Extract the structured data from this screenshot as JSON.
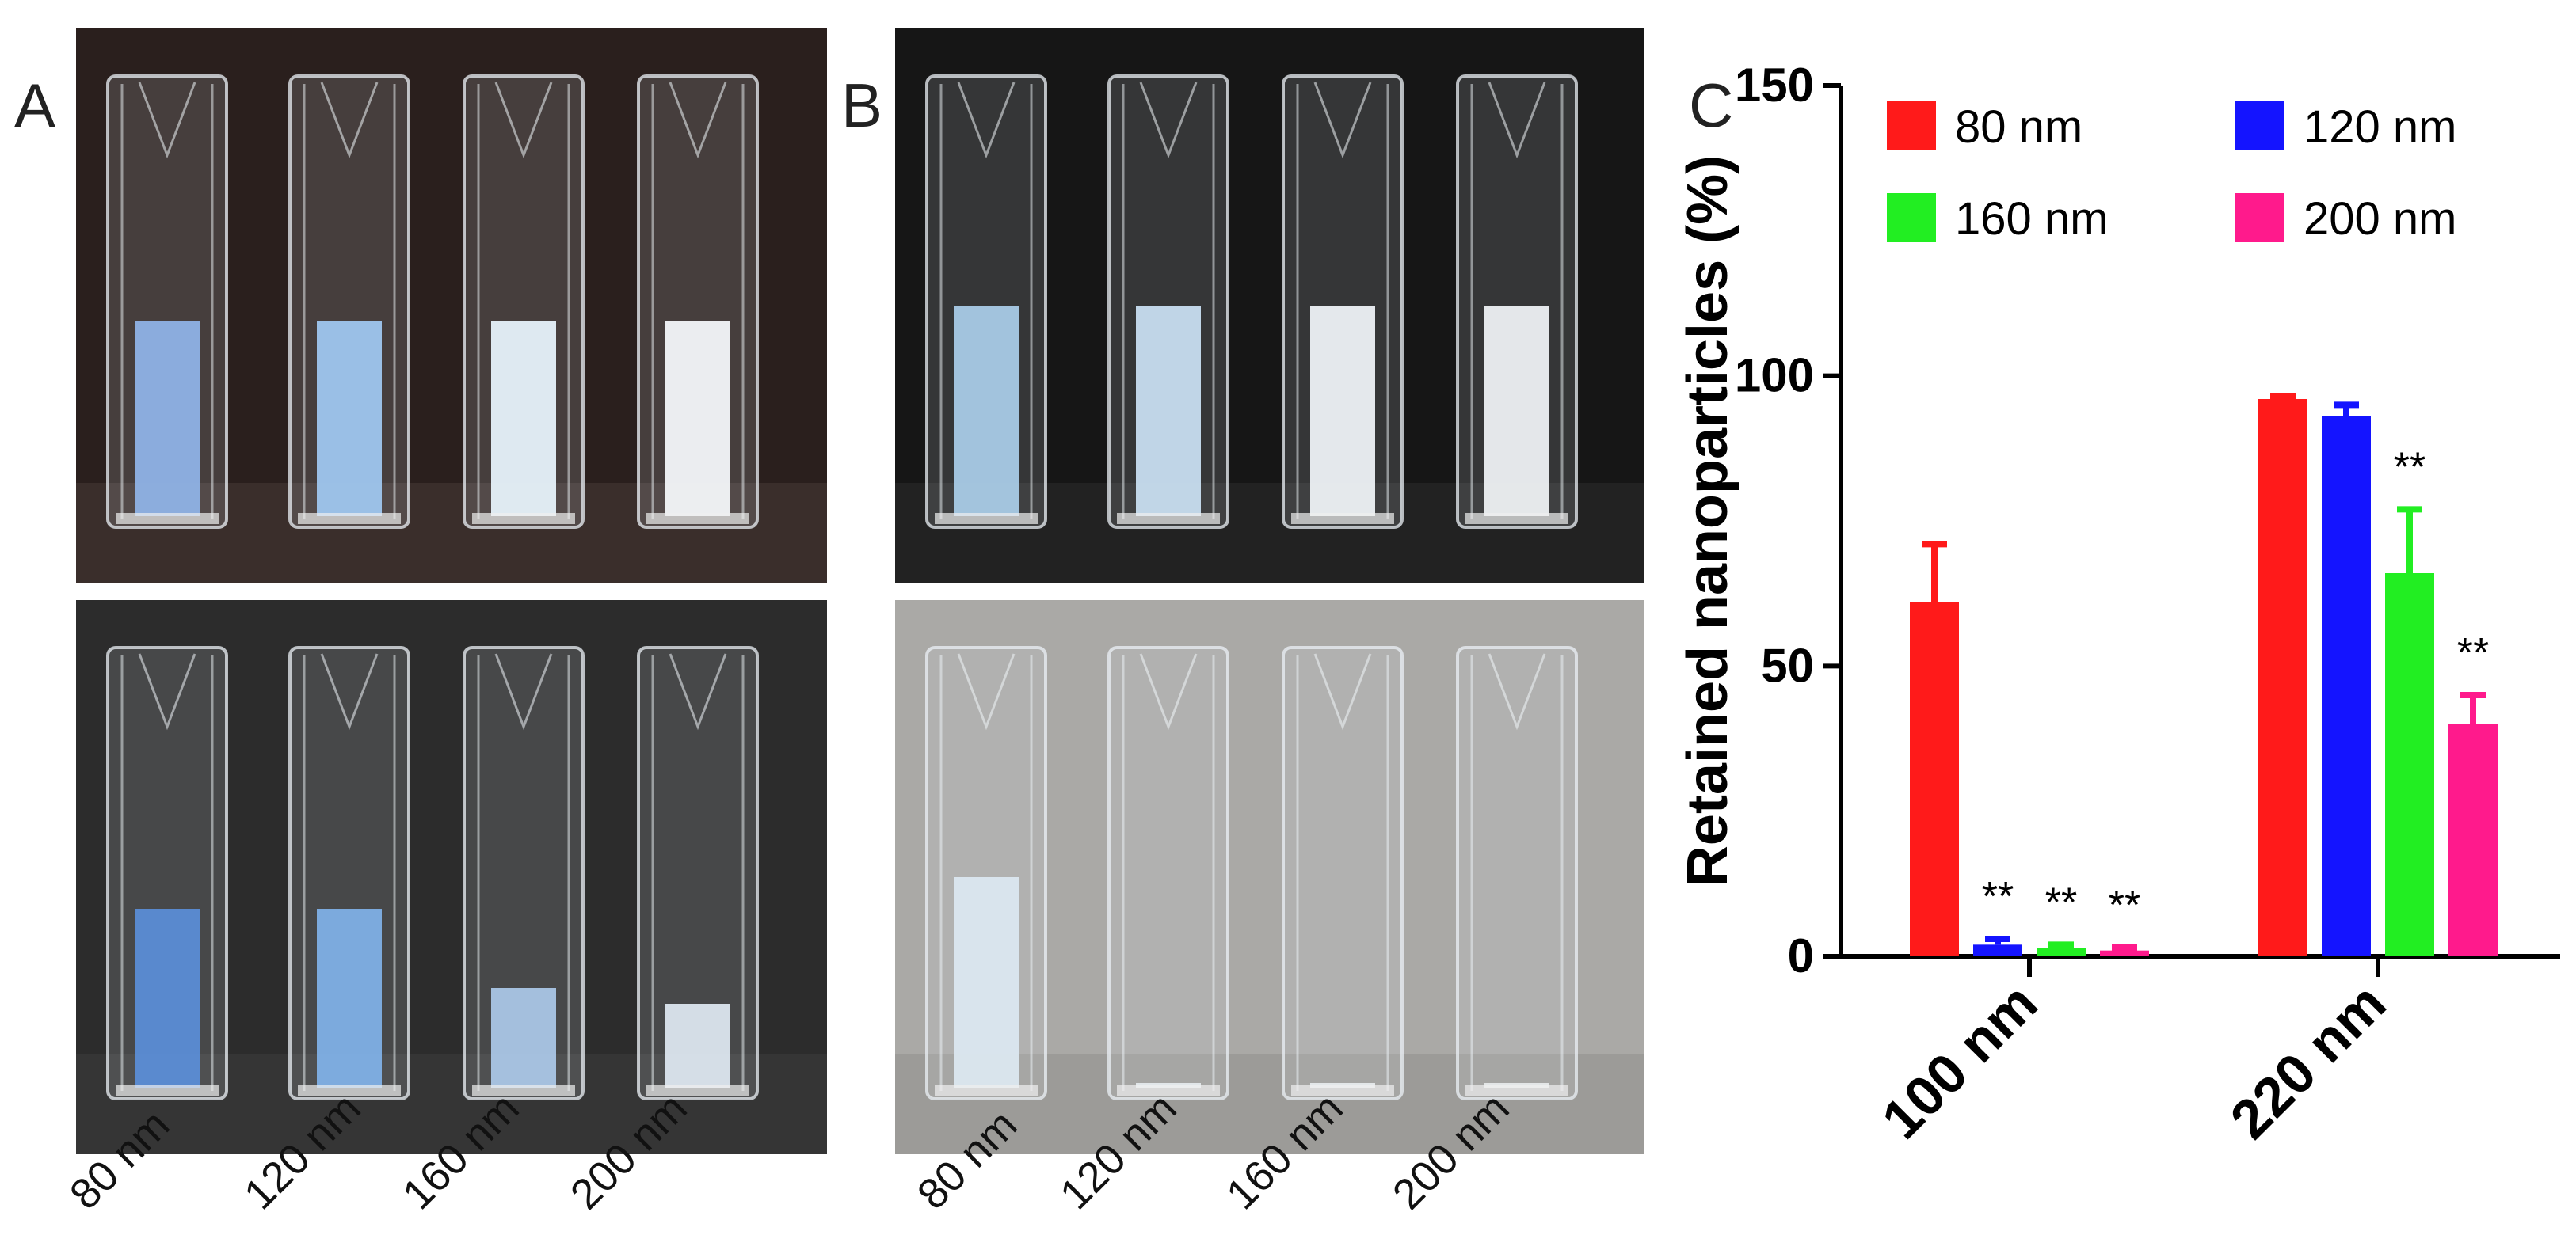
{
  "panels": {
    "a_letter": "A",
    "b_letter": "B",
    "c_letter": "C"
  },
  "photo_a": {
    "tube_labels": [
      "80 nm",
      "120 nm",
      "160 nm",
      "200 nm"
    ],
    "top_fill_colors": [
      "#8fb2e6",
      "#9fc6ef",
      "#e7f2fb",
      "#f4f7fa"
    ],
    "bottom_fill_colors": [
      "#5b8dd6",
      "#7fb0e6",
      "#aac6e6",
      "#dce6ef"
    ],
    "top_background": "#2a1f1d",
    "bottom_background": "#2c2c2c"
  },
  "photo_b": {
    "tube_labels": [
      "80 nm",
      "120 nm",
      "160 nm",
      "200 nm"
    ],
    "top_fill_colors": [
      "#a9cbe6",
      "#c8def0",
      "#eef2f5",
      "#eef1f3"
    ],
    "bottom_fill_colors": [
      "#dbe7f0",
      "#e4e9ed",
      "#e6eaed",
      "#e6e9eb"
    ],
    "top_background": "#161616",
    "bottom_background": "#aaa9a6"
  },
  "chart_data": {
    "type": "bar",
    "categories": [
      "100 nm",
      "220 nm"
    ],
    "series": [
      {
        "name": "80 nm",
        "color": "#ff1a1a",
        "values": [
          61,
          96
        ],
        "errors": [
          10,
          0.5
        ],
        "stars": [
          "",
          ""
        ]
      },
      {
        "name": "120 nm",
        "color": "#1414ff",
        "values": [
          2,
          93
        ],
        "errors": [
          1,
          2
        ],
        "stars": [
          "**",
          ""
        ]
      },
      {
        "name": "160 nm",
        "color": "#22ee22",
        "values": [
          1.5,
          66
        ],
        "errors": [
          0.5,
          11
        ],
        "stars": [
          "**",
          "**"
        ]
      },
      {
        "name": "200 nm",
        "color": "#ff1a8c",
        "values": [
          1,
          40
        ],
        "errors": [
          0.5,
          5
        ],
        "stars": [
          "**",
          "**"
        ]
      }
    ],
    "ylabel": "Retained nanoparticles (%)",
    "xlabel": "",
    "ylim": [
      0,
      150
    ],
    "yticks": [
      0,
      50,
      100,
      150
    ],
    "legend_position": "top"
  }
}
